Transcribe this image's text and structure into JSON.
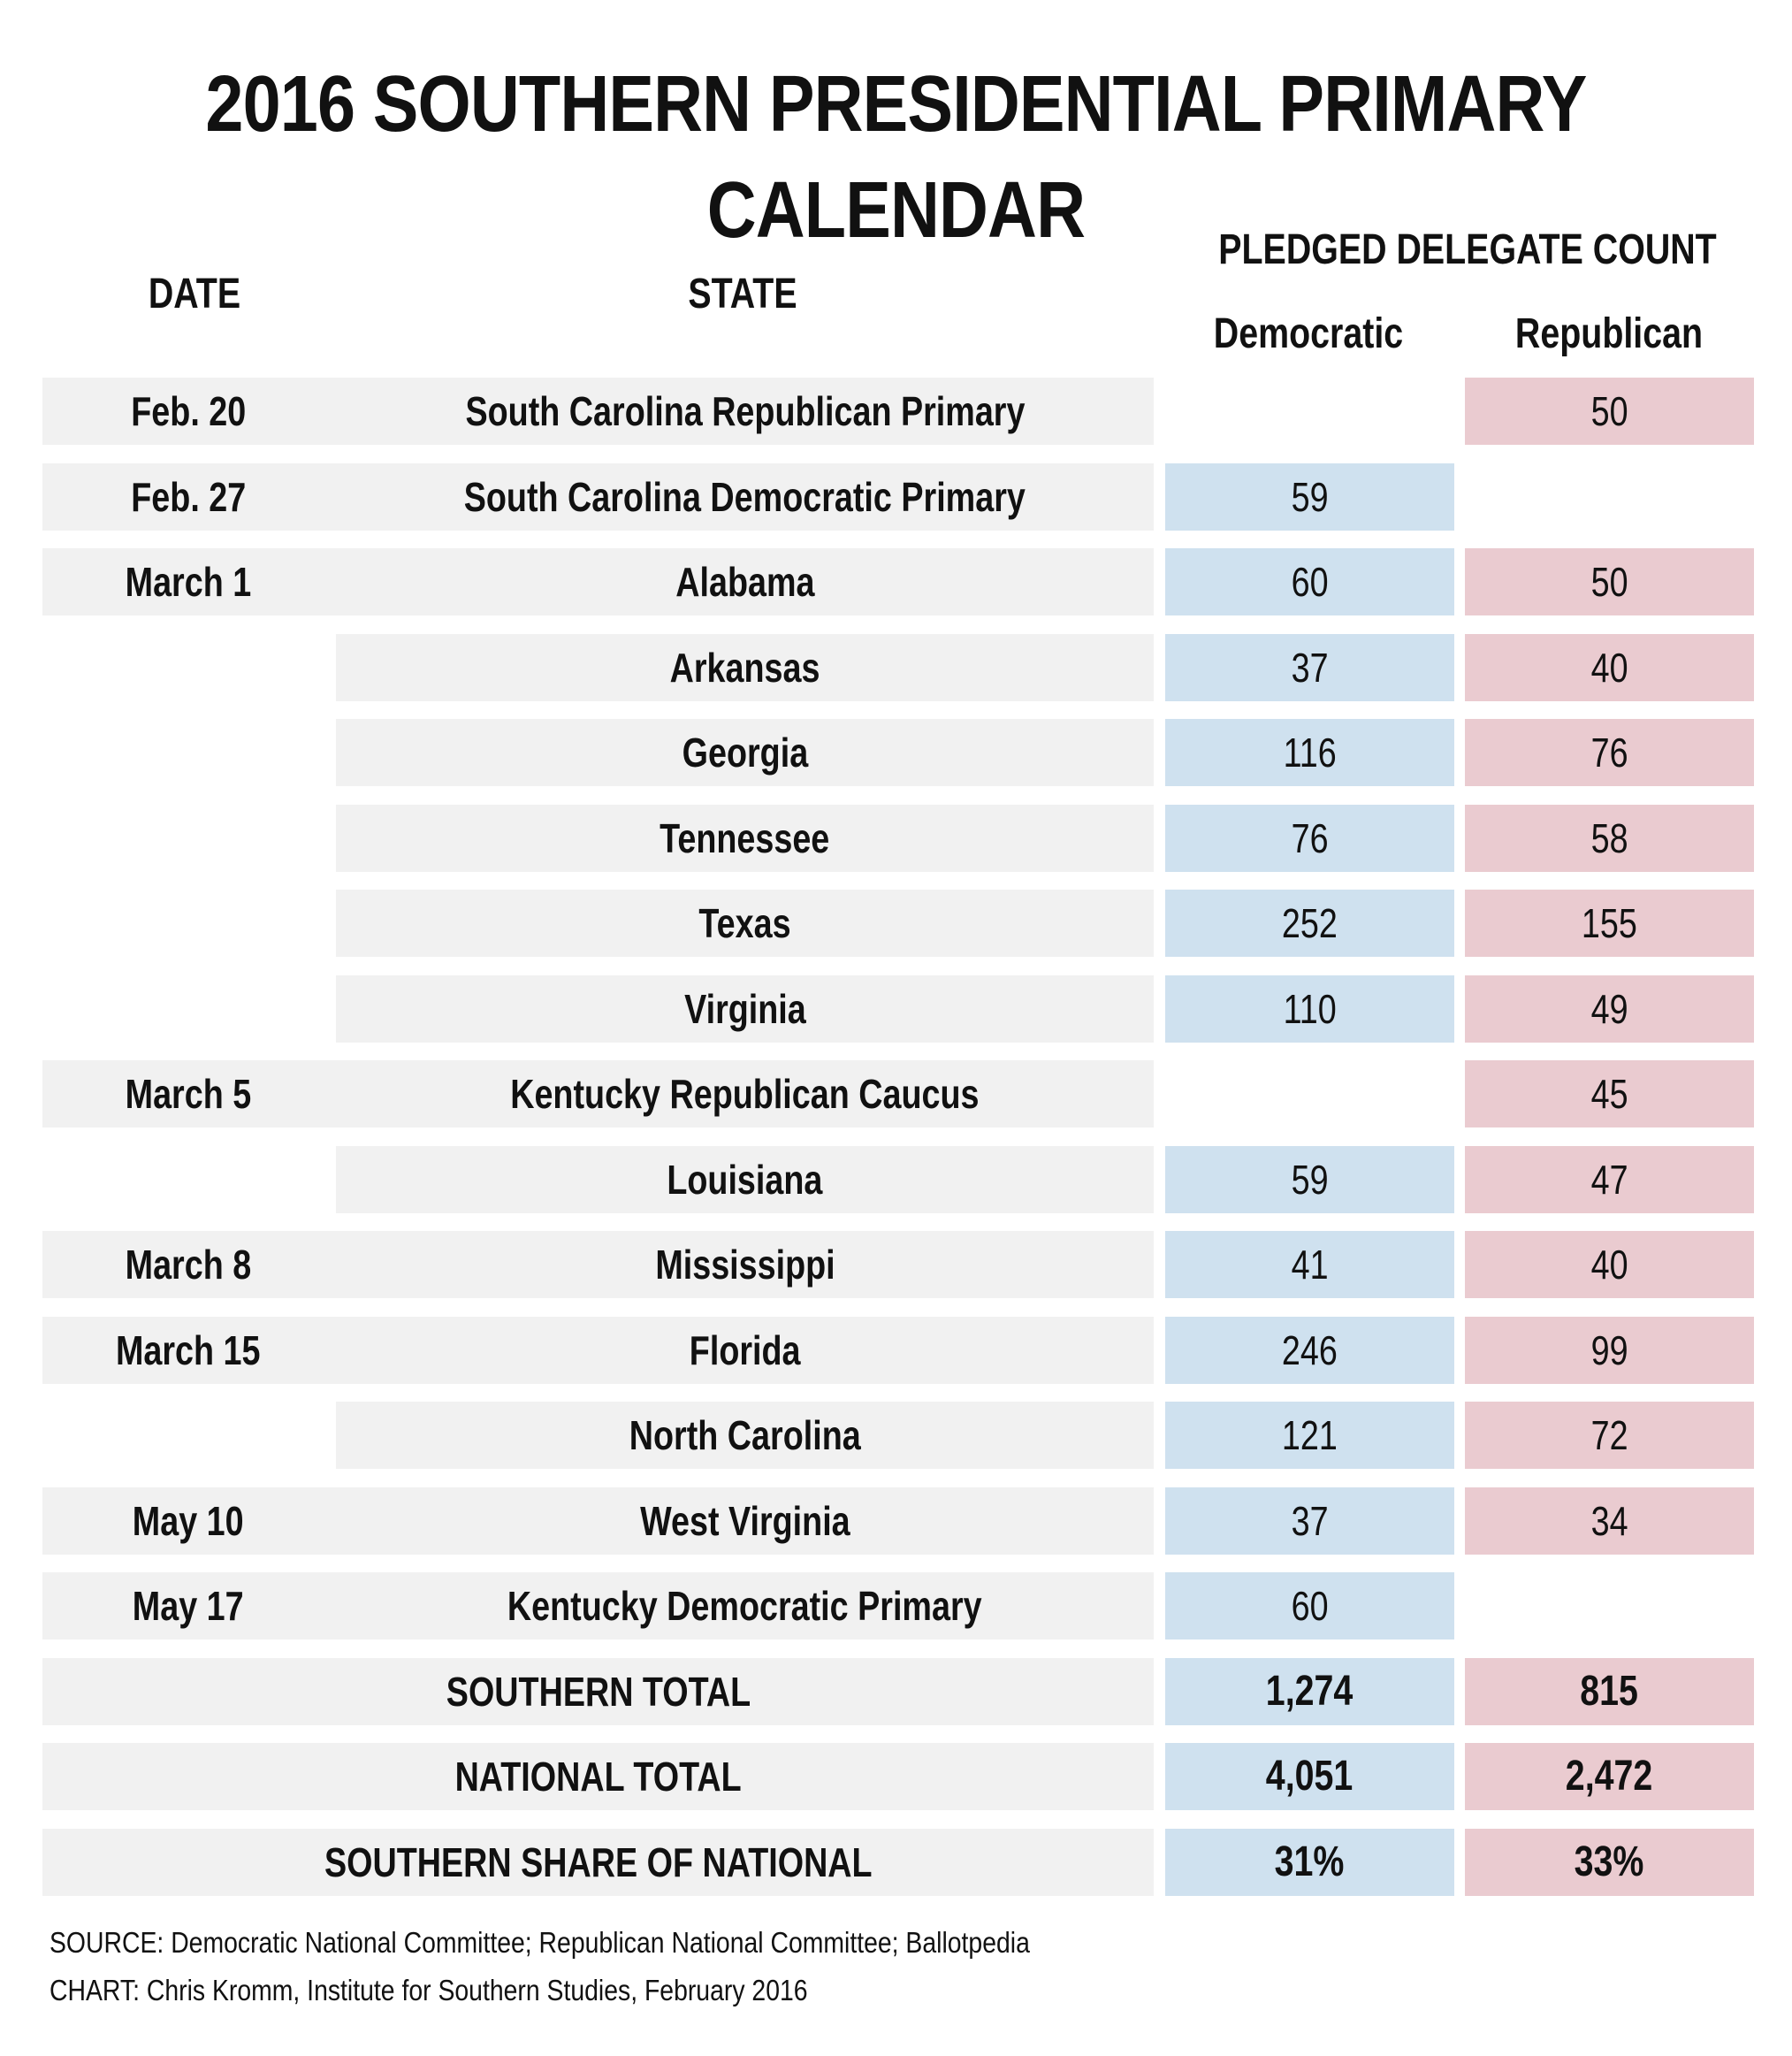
{
  "title": "2016 SOUTHERN PRESIDENTIAL PRIMARY CALENDAR",
  "headers": {
    "date": "DATE",
    "state": "STATE",
    "pledged": "PLEDGED DELEGATE COUNT",
    "democratic": "Democratic",
    "republican": "Republican"
  },
  "rows": [
    {
      "date": "Feb. 20",
      "state": "South Carolina Republican Primary",
      "dem": "",
      "rep": "50"
    },
    {
      "date": "Feb. 27",
      "state": "South Carolina Democratic Primary",
      "dem": "59",
      "rep": ""
    },
    {
      "date": "March 1",
      "state": "Alabama",
      "dem": "60",
      "rep": "50"
    },
    {
      "date": "",
      "state": "Arkansas",
      "dem": "37",
      "rep": "40"
    },
    {
      "date": "",
      "state": "Georgia",
      "dem": "116",
      "rep": "76"
    },
    {
      "date": "",
      "state": "Tennessee",
      "dem": "76",
      "rep": "58"
    },
    {
      "date": "",
      "state": "Texas",
      "dem": "252",
      "rep": "155"
    },
    {
      "date": "",
      "state": "Virginia",
      "dem": "110",
      "rep": "49"
    },
    {
      "date": "March 5",
      "state": "Kentucky Republican Caucus",
      "dem": "",
      "rep": "45"
    },
    {
      "date": "",
      "state": "Louisiana",
      "dem": "59",
      "rep": "47"
    },
    {
      "date": "March 8",
      "state": "Mississippi",
      "dem": "41",
      "rep": "40"
    },
    {
      "date": "March 15",
      "state": "Florida",
      "dem": "246",
      "rep": "99"
    },
    {
      "date": "",
      "state": "North Carolina",
      "dem": "121",
      "rep": "72"
    },
    {
      "date": "May 10",
      "state": "West Virginia",
      "dem": "37",
      "rep": "34"
    },
    {
      "date": "May 17",
      "state": "Kentucky Democratic Primary",
      "dem": "60",
      "rep": ""
    }
  ],
  "totals": [
    {
      "label": "SOUTHERN TOTAL",
      "dem": "1,274",
      "rep": "815"
    },
    {
      "label": "NATIONAL TOTAL",
      "dem": "4,051",
      "rep": "2,472"
    },
    {
      "label": "SOUTHERN SHARE OF NATIONAL",
      "dem": "31%",
      "rep": "33%"
    }
  ],
  "footer": {
    "source": "SOURCE: Democratic National Committee; Republican National Committee; Ballotpedia",
    "chart": "CHART: Chris Kromm, Institute for Southern Studies, February 2016"
  },
  "colors": {
    "row_background": "#f1f1f1",
    "democratic": "#cfe1ef",
    "republican": "#eacbd0"
  }
}
